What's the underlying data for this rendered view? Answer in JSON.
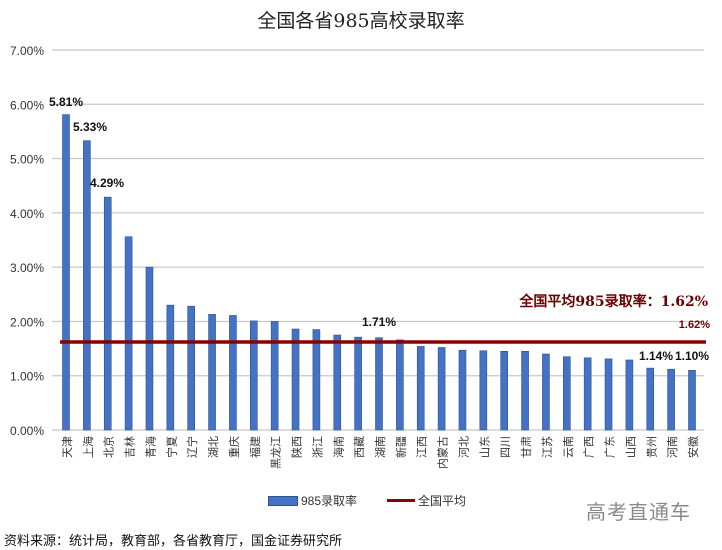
{
  "title": "全国各省985高校录取率",
  "legend": {
    "bar_label": "985录取率",
    "line_label": "全国平均"
  },
  "annotation": {
    "average_text": "全国平均985录取率：1.62%",
    "average_value_label": "1.62%"
  },
  "watermark": "高考直通车",
  "source": "资料来源：统计局，教育部，各省教育厅，国金证券研究所",
  "colors": {
    "bar": "#4472C4",
    "bar_edge": "#2F528F",
    "average_line": "#8B0000",
    "grid": "#C8C8C8"
  },
  "chart_data": {
    "type": "bar",
    "title": "全国各省985高校录取率",
    "xlabel": "",
    "ylabel": "",
    "ylim": [
      0,
      7
    ],
    "yticks": [
      "0.00%",
      "1.00%",
      "2.00%",
      "3.00%",
      "4.00%",
      "5.00%",
      "6.00%",
      "7.00%"
    ],
    "grid": true,
    "legend_position": "bottom",
    "categories": [
      "天津",
      "上海",
      "北京",
      "吉林",
      "青海",
      "宁夏",
      "辽宁",
      "湖北",
      "重庆",
      "福建",
      "黑龙江",
      "陕西",
      "浙江",
      "海南",
      "西藏",
      "湖南",
      "新疆",
      "江西",
      "内蒙古",
      "河北",
      "山东",
      "四川",
      "甘肃",
      "江苏",
      "云南",
      "广西",
      "广东",
      "山西",
      "贵州",
      "河南",
      "安徽"
    ],
    "series": [
      {
        "name": "985录取率",
        "type": "bar",
        "values": [
          5.81,
          5.33,
          4.29,
          3.56,
          3.0,
          2.3,
          2.28,
          2.13,
          2.11,
          2.01,
          2.0,
          1.86,
          1.85,
          1.75,
          1.71,
          1.7,
          1.66,
          1.54,
          1.52,
          1.47,
          1.46,
          1.45,
          1.45,
          1.4,
          1.35,
          1.33,
          1.31,
          1.29,
          1.14,
          1.12,
          1.1
        ]
      },
      {
        "name": "全国平均",
        "type": "line",
        "values": [
          1.62
        ]
      }
    ],
    "data_labels": [
      {
        "category": "天津",
        "text": "5.81%"
      },
      {
        "category": "上海",
        "text": "5.33%"
      },
      {
        "category": "北京",
        "text": "4.29%"
      },
      {
        "category": "西藏",
        "text": "1.71%"
      },
      {
        "category": "贵州",
        "text": "1.14%"
      },
      {
        "category": "安徽",
        "text": "1.10%"
      }
    ],
    "annotations": [
      "全国平均985录取率：1.62%",
      "1.62%"
    ]
  }
}
